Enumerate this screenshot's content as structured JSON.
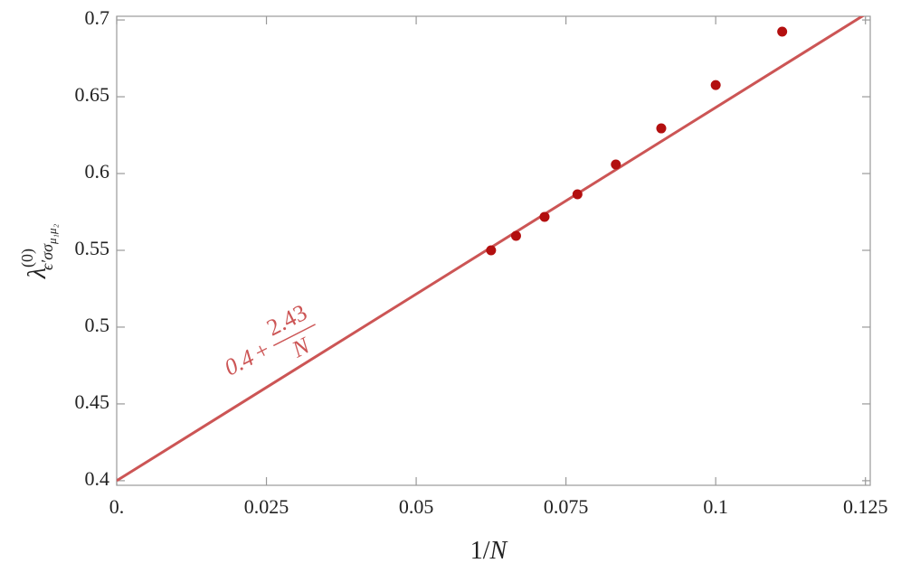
{
  "chart_data": {
    "type": "scatter",
    "x_label": {
      "one": "1/",
      "var": "N"
    },
    "y_label": {
      "symbol": "λ",
      "sup": "(0)",
      "sub": "ϵ′σσ",
      "subsub": "μ₁μ₂"
    },
    "x": [
      0.0625,
      0.06667,
      0.07143,
      0.07692,
      0.08333,
      0.09091,
      0.1,
      0.1111
    ],
    "series": [
      {
        "color": "#b30f0f",
        "values": [
          0.55,
          0.5594,
          0.5718,
          0.5865,
          0.6059,
          0.6294,
          0.6576,
          0.6924
        ]
      }
    ],
    "fit": {
      "intercept": 0.4,
      "slope": 2.43,
      "variable": "N",
      "color": "#cc5555"
    },
    "xlim": [
      0,
      0.1258
    ],
    "ylim": [
      0.397,
      0.7024
    ],
    "xticks": [
      {
        "value": 0,
        "label": "0."
      },
      0.025,
      0.05,
      0.075,
      0.1,
      0.125
    ],
    "yticks": [
      0.4,
      0.45,
      0.5,
      0.55,
      0.6,
      0.65,
      0.7
    ]
  }
}
